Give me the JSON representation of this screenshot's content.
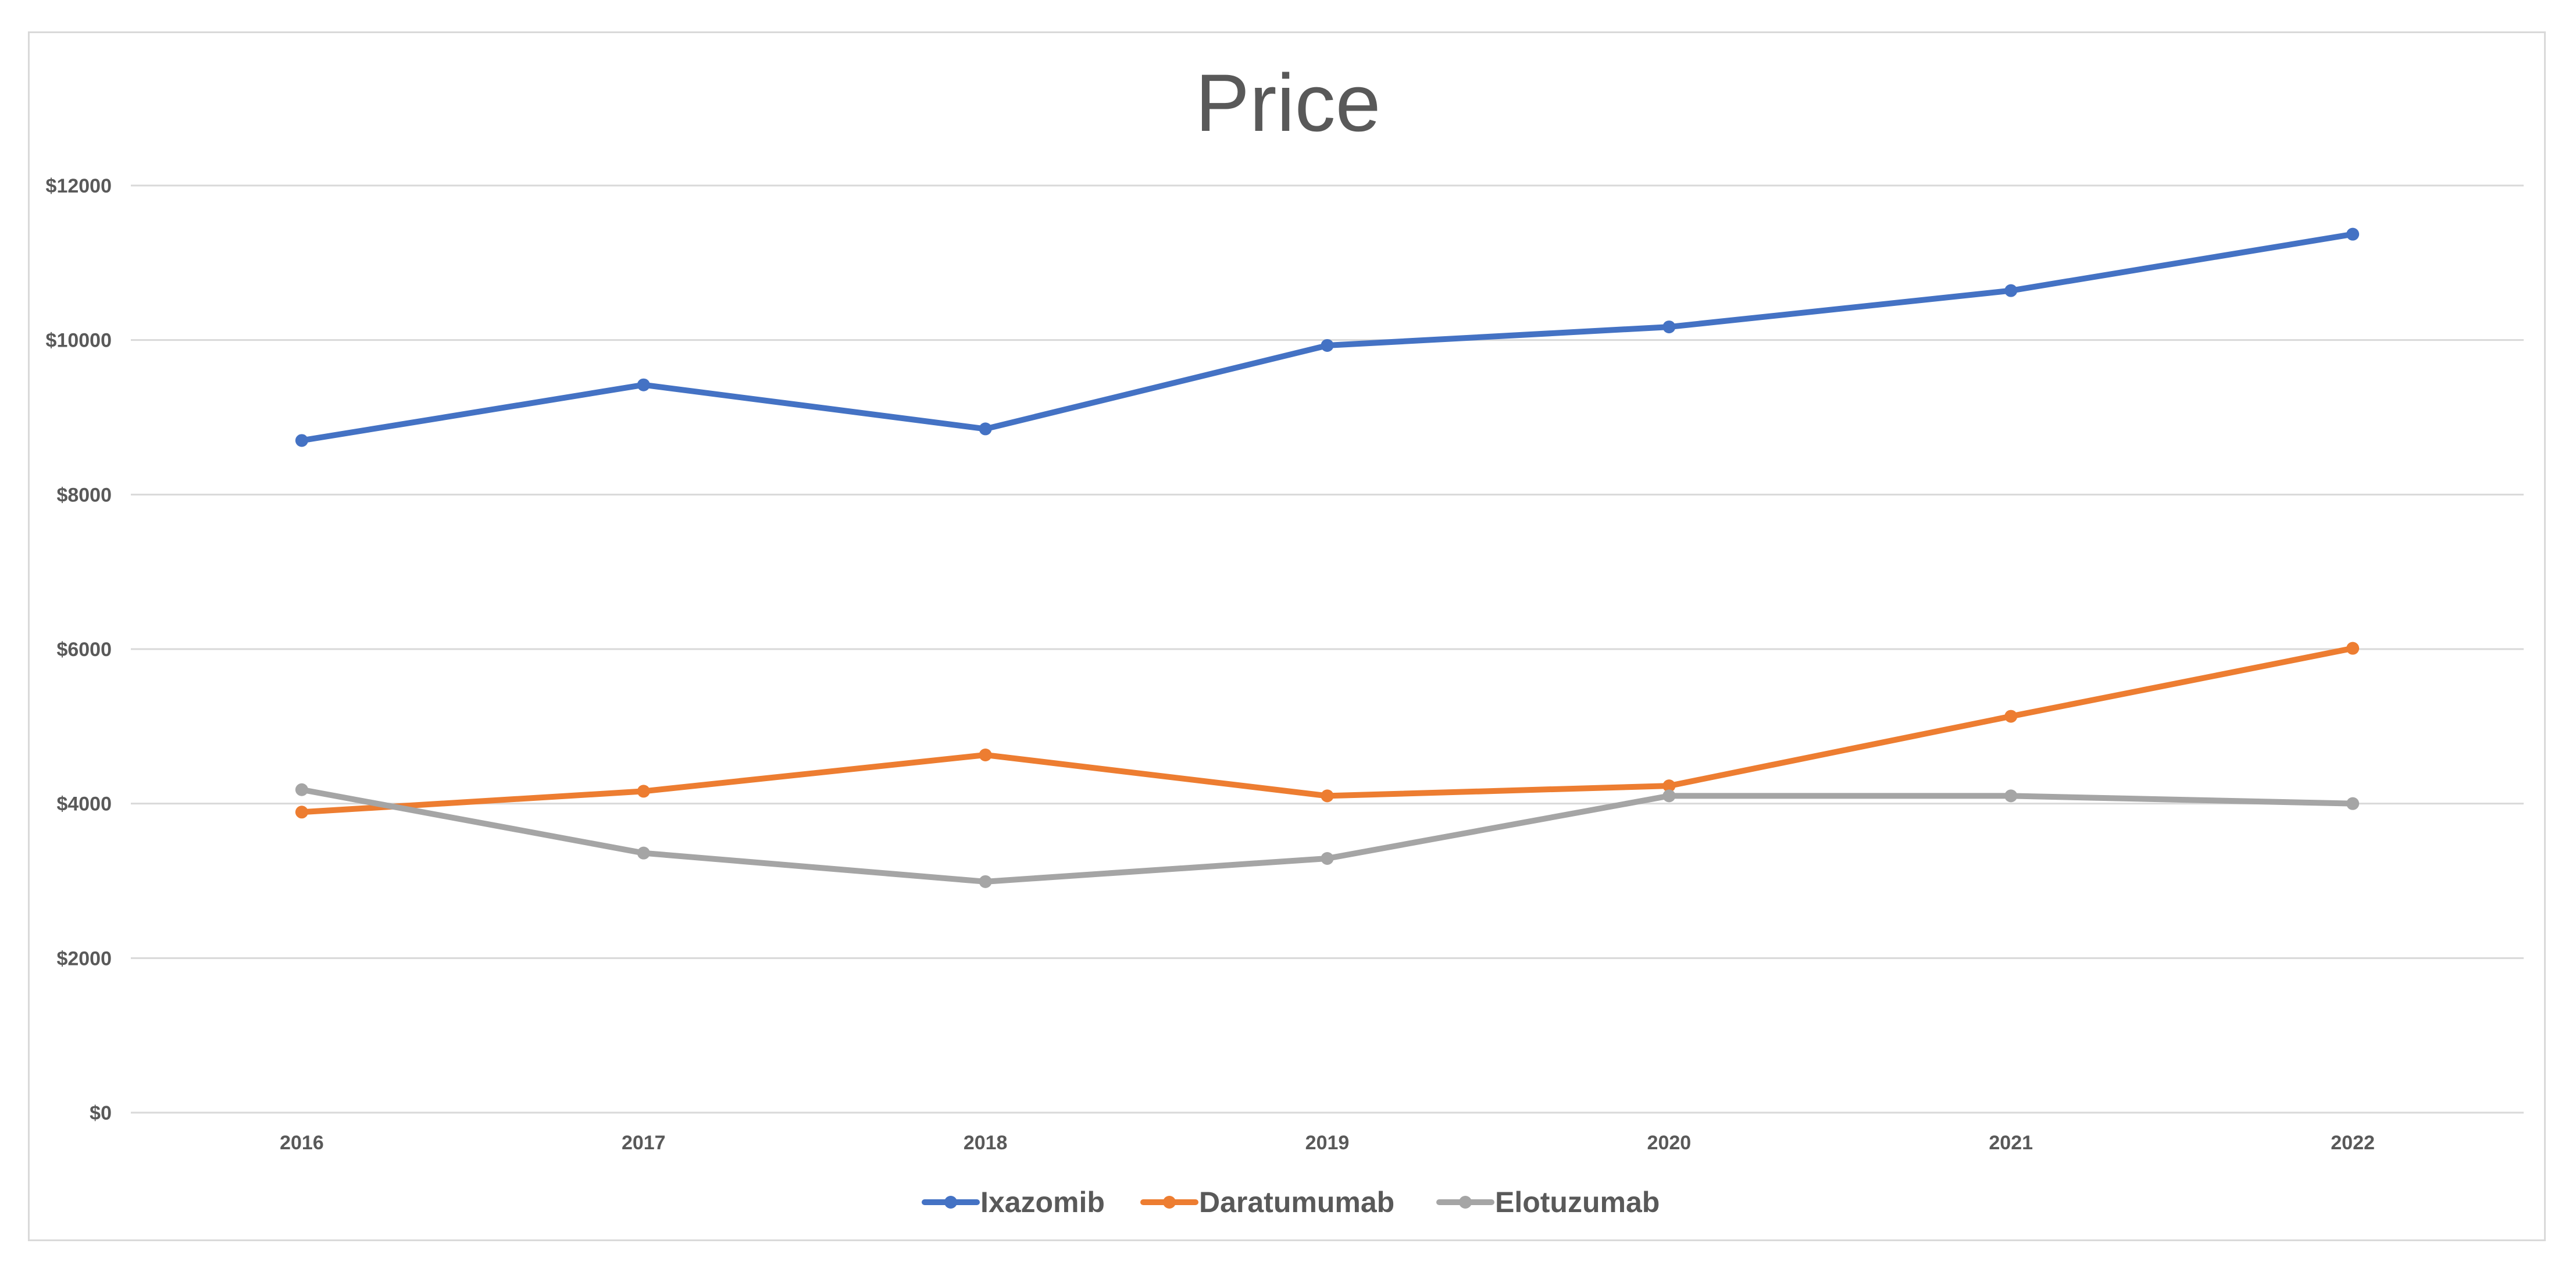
{
  "chart_data": {
    "type": "line",
    "title": "Price",
    "xlabel": "",
    "ylabel": "",
    "categories": [
      "2016",
      "2017",
      "2018",
      "2019",
      "2020",
      "2021",
      "2022"
    ],
    "ylim": [
      0,
      12000
    ],
    "yticks": [
      0,
      2000,
      4000,
      6000,
      8000,
      10000,
      12000
    ],
    "ytick_labels": [
      "$0",
      "$2000",
      "$4000",
      "$6000",
      "$8000",
      "$10000",
      "$12000"
    ],
    "grid": true,
    "legend_position": "bottom",
    "series": [
      {
        "name": "Ixazomib",
        "color": "#4472c4",
        "values": [
          8700,
          9420,
          8850,
          9930,
          10170,
          10640,
          11370
        ]
      },
      {
        "name": "Daratumumab",
        "color": "#ed7d31",
        "values": [
          3890,
          4160,
          4630,
          4100,
          4230,
          5130,
          6010
        ]
      },
      {
        "name": "Elotuzumab",
        "color": "#a5a5a5",
        "values": [
          4180,
          3360,
          2990,
          3290,
          4100,
          4100,
          4000
        ]
      }
    ]
  }
}
